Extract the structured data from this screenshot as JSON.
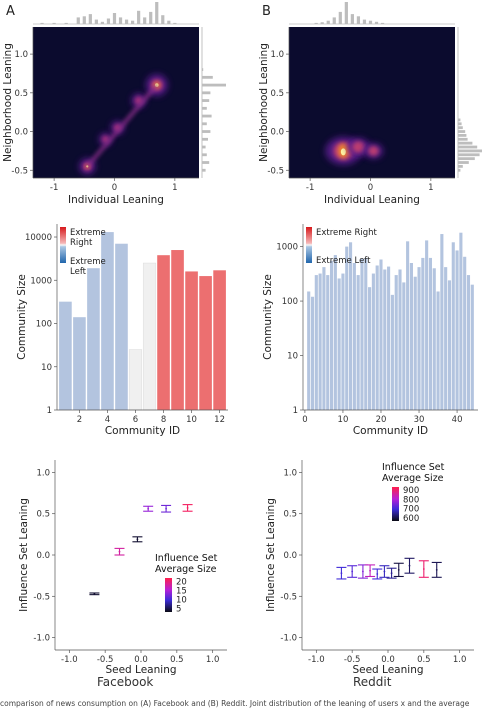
{
  "panel_letters": [
    "A",
    "B"
  ],
  "platform_labels": [
    "Facebook",
    "Reddit"
  ],
  "caption": "comparison of news consumption on (A) Facebook and (B) Reddit. Joint distribution of the leaning of users x and the average",
  "colors": {
    "heat_bg": "#0b0b2e",
    "marginal": "#bdbdbd",
    "right_bar": "#ec6f70",
    "left_bar": "#b3c4df",
    "neutral_bar": "#f0f0f0"
  },
  "chart_data": [
    {
      "id": "fb_density",
      "type": "heatmap",
      "xlabel": "Individual Leaning",
      "ylabel": "Neighborhood Leaning",
      "xlim": [
        -1.35,
        1.4
      ],
      "ylim": [
        -0.6,
        1.35
      ],
      "xticks": [
        "-1",
        "0",
        "1"
      ],
      "xtick_values": [
        -1,
        0,
        1
      ],
      "yticks": [
        "-0.5",
        "0.0",
        "0.5",
        "1.0"
      ],
      "ytick_values": [
        -0.5,
        0.0,
        0.5,
        1.0
      ],
      "hotspots": [
        {
          "x": 0.7,
          "y": 0.6,
          "intensity": 1.0
        },
        {
          "x": 0.4,
          "y": 0.4,
          "intensity": 0.45
        },
        {
          "x": 0.05,
          "y": 0.05,
          "intensity": 0.4
        },
        {
          "x": -0.15,
          "y": -0.1,
          "intensity": 0.35
        },
        {
          "x": -0.45,
          "y": -0.45,
          "intensity": 0.6
        }
      ],
      "x_marginal_bins": [
        -1.2,
        -1.0,
        -0.8,
        -0.6,
        -0.5,
        -0.4,
        -0.3,
        -0.2,
        -0.1,
        0.0,
        0.1,
        0.2,
        0.3,
        0.4,
        0.5,
        0.6,
        0.7,
        0.8,
        0.9,
        1.0
      ],
      "x_marginal_counts": [
        0.05,
        0.05,
        0.05,
        0.3,
        0.35,
        0.45,
        0.2,
        0.1,
        0.25,
        0.5,
        0.3,
        0.2,
        0.15,
        0.6,
        0.3,
        0.55,
        1.0,
        0.4,
        0.15,
        0.05
      ],
      "y_marginal_bins": [
        -0.5,
        -0.4,
        -0.3,
        -0.2,
        -0.1,
        0.0,
        0.1,
        0.2,
        0.3,
        0.4,
        0.5,
        0.6,
        0.7,
        0.8
      ],
      "y_marginal_counts": [
        0.15,
        0.3,
        0.2,
        0.15,
        0.25,
        0.35,
        0.2,
        0.4,
        0.2,
        0.3,
        0.35,
        1.0,
        0.45,
        0.05
      ]
    },
    {
      "id": "rd_density",
      "type": "heatmap",
      "xlabel": "Individual Leaning",
      "ylabel": "Neighborhood Leaning",
      "xlim": [
        -1.35,
        1.4
      ],
      "ylim": [
        -0.6,
        1.35
      ],
      "xticks": [
        "-1",
        "0",
        "1"
      ],
      "xtick_values": [
        -1,
        0,
        1
      ],
      "yticks": [
        "-0.5",
        "0.0",
        "0.5",
        "1.0"
      ],
      "ytick_values": [
        -0.5,
        0.0,
        0.5,
        1.0
      ],
      "hotspots": [
        {
          "x": -0.45,
          "y": -0.25,
          "intensity": 1.0
        },
        {
          "x": -0.2,
          "y": -0.2,
          "intensity": 0.45
        },
        {
          "x": 0.05,
          "y": -0.25,
          "intensity": 0.3
        }
      ],
      "x_marginal_bins": [
        -0.9,
        -0.8,
        -0.7,
        -0.6,
        -0.5,
        -0.4,
        -0.3,
        -0.2,
        -0.1,
        0.0,
        0.1,
        0.2
      ],
      "x_marginal_counts": [
        0.05,
        0.08,
        0.15,
        0.3,
        0.55,
        1.0,
        0.45,
        0.35,
        0.2,
        0.15,
        0.1,
        0.05
      ],
      "y_marginal_bins": [
        -0.5,
        -0.45,
        -0.4,
        -0.35,
        -0.3,
        -0.25,
        -0.2,
        -0.15,
        -0.1,
        -0.05,
        0.0,
        0.05,
        0.1,
        0.15
      ],
      "y_marginal_counts": [
        0.1,
        0.2,
        0.45,
        0.7,
        0.9,
        1.0,
        0.8,
        0.6,
        0.4,
        0.35,
        0.3,
        0.2,
        0.15,
        0.1
      ]
    },
    {
      "id": "fb_community",
      "type": "bar",
      "xlabel": "Community ID",
      "ylabel": "Community Size",
      "yscale": "log",
      "ylim": [
        1,
        20000
      ],
      "xlim": [
        0.4,
        12.6
      ],
      "categories": [
        1,
        2,
        3,
        4,
        5,
        6,
        7,
        8,
        9,
        10,
        11,
        12
      ],
      "values": [
        320,
        140,
        1900,
        13000,
        7000,
        25,
        2500,
        3800,
        5000,
        1600,
        1250,
        1700
      ],
      "bar_types": [
        "left",
        "left",
        "left",
        "left",
        "left",
        "neutral",
        "neutral",
        "right",
        "right",
        "right",
        "right",
        "right"
      ],
      "xticks": [
        "2",
        "4",
        "6",
        "8",
        "10",
        "12"
      ],
      "xtick_values": [
        2,
        4,
        6,
        8,
        10,
        12
      ],
      "yticks": [
        "1",
        "10",
        "100",
        "1000",
        "10000"
      ],
      "ytick_values": [
        1,
        10,
        100,
        1000,
        10000
      ],
      "legend": {
        "top": "Extreme\nRight",
        "bottom": "Extreme\nLeft"
      }
    },
    {
      "id": "rd_community",
      "type": "bar",
      "xlabel": "Community ID",
      "ylabel": "Community Size",
      "yscale": "log",
      "ylim": [
        1,
        2600
      ],
      "xlim": [
        -0.5,
        45.5
      ],
      "categories": [
        1,
        2,
        3,
        4,
        5,
        6,
        7,
        8,
        9,
        10,
        11,
        12,
        13,
        14,
        15,
        16,
        17,
        18,
        19,
        20,
        21,
        22,
        23,
        24,
        25,
        26,
        27,
        28,
        29,
        30,
        31,
        32,
        33,
        34,
        35,
        36,
        37,
        38,
        39,
        40,
        41,
        42,
        43,
        44
      ],
      "values": [
        150,
        120,
        300,
        320,
        420,
        300,
        550,
        700,
        260,
        320,
        1000,
        1200,
        500,
        300,
        600,
        620,
        180,
        320,
        450,
        580,
        380,
        430,
        130,
        300,
        380,
        220,
        1250,
        500,
        280,
        420,
        620,
        1300,
        620,
        400,
        150,
        1700,
        420,
        240,
        1200,
        850,
        1800,
        650,
        300,
        200
      ],
      "bar_types": [
        "left",
        "left",
        "left",
        "left",
        "left",
        "left",
        "left",
        "left",
        "left",
        "left",
        "left",
        "left",
        "left",
        "left",
        "left",
        "left",
        "left",
        "left",
        "left",
        "left",
        "left",
        "left",
        "left",
        "left",
        "left",
        "left",
        "left",
        "left",
        "left",
        "left",
        "left",
        "left",
        "left",
        "left",
        "left",
        "left",
        "left",
        "left",
        "left",
        "left",
        "left",
        "left",
        "left",
        "left"
      ],
      "xticks": [
        "0",
        "10",
        "20",
        "30",
        "40"
      ],
      "xtick_values": [
        0,
        10,
        20,
        30,
        40
      ],
      "yticks": [
        "1",
        "10",
        "100",
        "1000"
      ],
      "ytick_values": [
        1,
        10,
        100,
        1000
      ],
      "legend": {
        "top": "Extreme Right",
        "bottom": "Extreme Left"
      }
    },
    {
      "id": "fb_influence",
      "type": "scatter",
      "xlabel": "Seed Leaning",
      "ylabel": "Influence Set Leaning",
      "xlim": [
        -1.2,
        1.2
      ],
      "ylim": [
        -1.15,
        1.15
      ],
      "xticks": [
        "-1.0",
        "-0.5",
        "0.0",
        "0.5",
        "1.0"
      ],
      "xtick_values": [
        -1.0,
        -0.5,
        0.0,
        0.5,
        1.0
      ],
      "yticks": [
        "-1.0",
        "-0.5",
        "0.0",
        "0.5",
        "1.0"
      ],
      "ytick_values": [
        -1.0,
        -0.5,
        0.0,
        0.5,
        1.0
      ],
      "points": [
        {
          "x": -0.65,
          "y": -0.47,
          "err": 0.01,
          "size": 4
        },
        {
          "x": -0.3,
          "y": 0.04,
          "err": 0.04,
          "size": 18
        },
        {
          "x": -0.05,
          "y": 0.19,
          "err": 0.03,
          "size": 4
        },
        {
          "x": 0.1,
          "y": 0.56,
          "err": 0.03,
          "size": 14
        },
        {
          "x": 0.35,
          "y": 0.56,
          "err": 0.04,
          "size": 12
        },
        {
          "x": 0.65,
          "y": 0.57,
          "err": 0.04,
          "size": 21
        }
      ],
      "legend": {
        "title": "Influence Set\nAverage Size",
        "labels": [
          "20",
          "15",
          "10",
          "5"
        ],
        "label_values": [
          20,
          15,
          10,
          5
        ],
        "range": [
          3,
          22
        ]
      }
    },
    {
      "id": "rd_influence",
      "type": "scatter",
      "xlabel": "Seed Leaning",
      "ylabel": "Influence Set Leaning",
      "xlim": [
        -1.2,
        1.2
      ],
      "ylim": [
        -1.15,
        1.15
      ],
      "xticks": [
        "-1.0",
        "-0.5",
        "0.0",
        "0.5",
        "1.0"
      ],
      "xtick_values": [
        -1.0,
        -0.5,
        0.0,
        0.5,
        1.0
      ],
      "yticks": [
        "-1.0",
        "-0.5",
        "0.0",
        "0.5",
        "1.0"
      ],
      "ytick_values": [
        -1.0,
        -0.5,
        0.0,
        0.5,
        1.0
      ],
      "points": [
        {
          "x": -0.65,
          "y": -0.22,
          "err": 0.07,
          "size": 700
        },
        {
          "x": -0.5,
          "y": -0.2,
          "err": 0.07,
          "size": 720
        },
        {
          "x": -0.35,
          "y": -0.2,
          "err": 0.08,
          "size": 760
        },
        {
          "x": -0.25,
          "y": -0.19,
          "err": 0.07,
          "size": 830
        },
        {
          "x": -0.15,
          "y": -0.23,
          "err": 0.06,
          "size": 700
        },
        {
          "x": -0.05,
          "y": -0.2,
          "err": 0.07,
          "size": 680
        },
        {
          "x": 0.05,
          "y": -0.22,
          "err": 0.06,
          "size": 650
        },
        {
          "x": 0.15,
          "y": -0.18,
          "err": 0.08,
          "size": 600
        },
        {
          "x": 0.3,
          "y": -0.13,
          "err": 0.09,
          "size": 620
        },
        {
          "x": 0.5,
          "y": -0.17,
          "err": 0.1,
          "size": 900
        },
        {
          "x": 0.68,
          "y": -0.18,
          "err": 0.09,
          "size": 610
        }
      ],
      "legend": {
        "title": "Influence Set\nAverage Size",
        "labels": [
          "900",
          "800",
          "700",
          "600"
        ],
        "label_values": [
          900,
          800,
          700,
          600
        ],
        "range": [
          570,
          930
        ]
      }
    }
  ]
}
